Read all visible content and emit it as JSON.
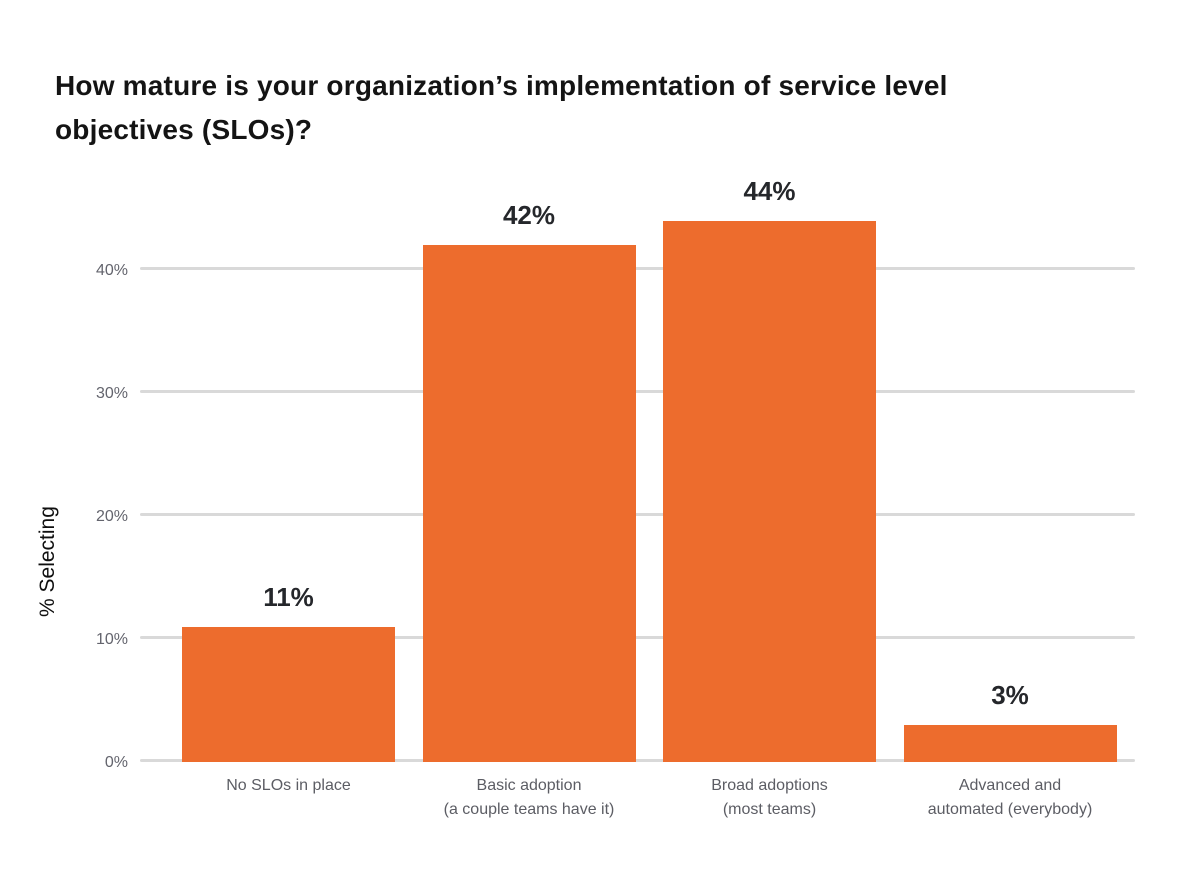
{
  "title": {
    "text": "How mature is your organization’s implementation of service level objectives (SLOs)?",
    "lines": [
      "How mature is your organization’s implementation of service level",
      "objectives (SLOs)?"
    ]
  },
  "chart_data": {
    "type": "bar",
    "title": "How mature is your organization’s implementation of service level objectives (SLOs)?",
    "categories": [
      "No SLOs in place",
      "Basic adoption (a couple teams have it)",
      "Broad adoptions (most teams)",
      "Advanced and automated (everybody)"
    ],
    "category_lines": [
      [
        "No SLOs in place"
      ],
      [
        "Basic adoption",
        "(a couple teams have it)"
      ],
      [
        "Broad adoptions",
        "(most teams)"
      ],
      [
        "Advanced and",
        "automated (everybody)"
      ]
    ],
    "values": [
      11,
      42,
      44,
      3
    ],
    "value_labels": [
      "11%",
      "42%",
      "44%",
      "3%"
    ],
    "xlabel": "",
    "ylabel": "% Selecting",
    "y_ticks": [
      {
        "value": 0,
        "label": "0%"
      },
      {
        "value": 10,
        "label": "10%"
      },
      {
        "value": 20,
        "label": "20%"
      },
      {
        "value": 30,
        "label": "30%"
      },
      {
        "value": 40,
        "label": "40%"
      }
    ],
    "ylim": [
      0,
      48
    ],
    "grid": true,
    "legend": false,
    "bar_color": "#ed6c2d"
  },
  "colors": {
    "background": "#ffffff",
    "bar": "#ed6c2d",
    "gridline": "#d9d9d9",
    "tick_label": "#63646d",
    "category_label": "#5c5d64",
    "value_label": "#25272b",
    "title": "#141414"
  }
}
